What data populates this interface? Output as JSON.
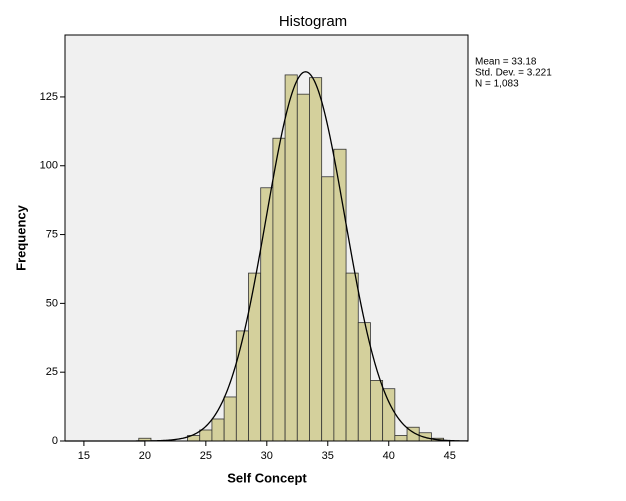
{
  "chart_data": {
    "type": "histogram",
    "title": "Histogram",
    "x_label": "Self Concept",
    "y_label": "Frequency",
    "bins": [
      19.5,
      20.5,
      21.5,
      22.5,
      23.5,
      24.5,
      25.5,
      26.5,
      27.5,
      28.5,
      29.5,
      30.5,
      31.5,
      32.5,
      33.5,
      34.5,
      35.5,
      36.5,
      37.5,
      38.5,
      39.5,
      40.5,
      41.5,
      42.5,
      43.5,
      44.5
    ],
    "values": [
      1,
      0,
      0,
      0,
      2,
      4,
      8,
      16,
      40,
      61,
      92,
      110,
      133,
      126,
      132,
      96,
      106,
      61,
      43,
      22,
      19,
      2,
      5,
      3,
      1
    ],
    "color": "#d4d09c",
    "xlim": [
      13.45,
      46.5
    ],
    "xticks": [
      15,
      20,
      25,
      30,
      35,
      40,
      45
    ],
    "ylim": [
      0,
      147.5
    ],
    "yticks": [
      0,
      25,
      50,
      75,
      100,
      125
    ],
    "normal_curve": {
      "mean": 33.18,
      "sd": 3.221,
      "n": 1083
    },
    "stats": [
      "Mean = 33.18",
      "Std. Dev. = 3.221",
      "N = 1,083"
    ]
  }
}
